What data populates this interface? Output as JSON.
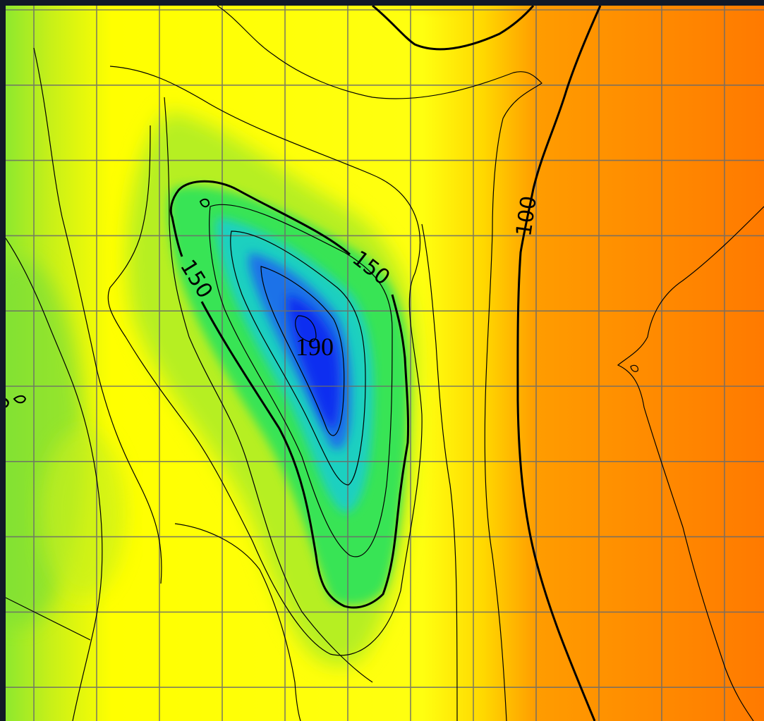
{
  "chart_data": {
    "type": "heatmap",
    "title": "",
    "xlabel": "",
    "ylabel": "",
    "grid": true,
    "colormap": [
      "#0a2ff0",
      "#25c8e8",
      "#2fe84a",
      "#ffff00",
      "#ffd000",
      "#ff8a00"
    ],
    "contour_levels": [
      100,
      110,
      120,
      130,
      140,
      150,
      160,
      170,
      180,
      190
    ],
    "contour_labels": [
      {
        "text": "100",
        "level": 100
      },
      {
        "text": "150",
        "level": 150
      },
      {
        "text": "150",
        "level": 150
      },
      {
        "text": "190",
        "level": 190
      }
    ],
    "edge_fragment_label": {
      "text": "0"
    }
  }
}
